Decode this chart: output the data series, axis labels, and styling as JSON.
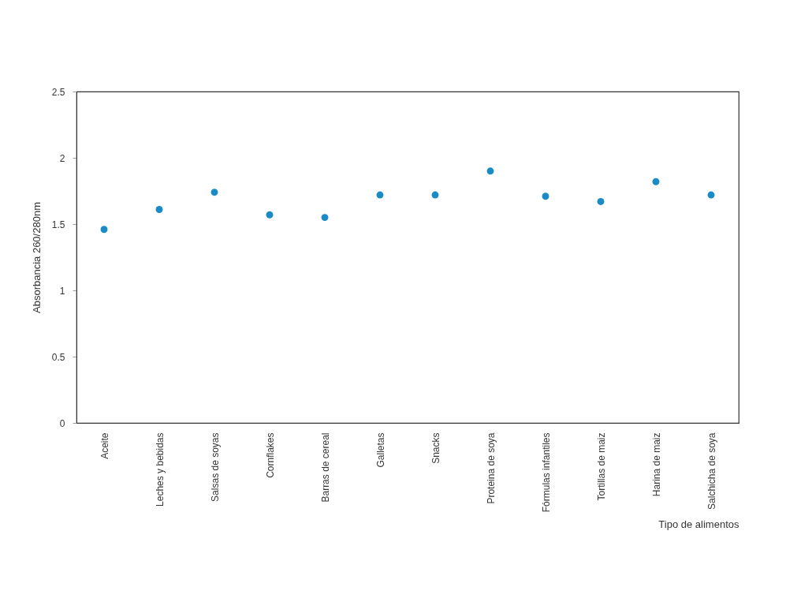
{
  "chart_data": {
    "type": "scatter",
    "xlabel": "Tipo de alimentos",
    "ylabel": "Absorbancia 260/280nm",
    "categories": [
      "Aceite",
      "Leches y bebidas",
      "Salsas de soyas",
      "Cornflakes",
      "Barras de cereal",
      "Galletas",
      "Snacks",
      "Proteina de soya",
      "Fórmulas infantiles",
      "Tortillas de maiz",
      "Harina de maiz",
      "Salchicha de soya"
    ],
    "series": [
      {
        "color": "#1a8bc4",
        "values": [
          1.46,
          1.61,
          1.74,
          1.57,
          1.55,
          1.72,
          1.72,
          1.9,
          1.71,
          1.67,
          1.82,
          1.72
        ]
      }
    ],
    "ylim": [
      0,
      2.5
    ],
    "yticks": [
      0,
      0.5,
      1,
      1.5,
      2,
      2.5
    ],
    "grid": false,
    "marker": "circle"
  }
}
